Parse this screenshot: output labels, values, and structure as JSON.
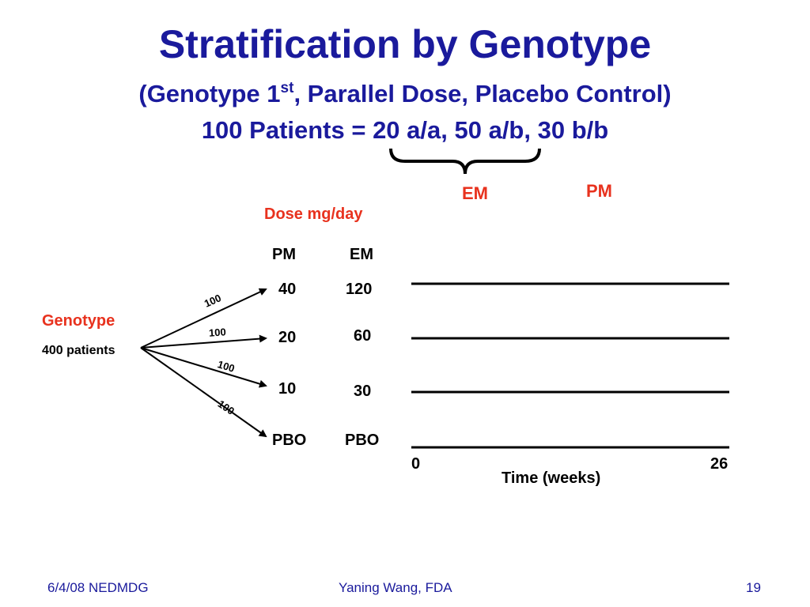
{
  "slide": {
    "title": "Stratification by Genotype",
    "subtitle_part1": "(Genotype 1",
    "subtitle_sup": "st",
    "subtitle_part2": ", Parallel Dose, Placebo Control)",
    "patients_line": "100 Patients = 20 a/a, 50 a/b, 30 b/b",
    "brace_label": "EM",
    "pm_label": "PM"
  },
  "diagram": {
    "genotype_label": "Genotype",
    "patients_label": "400 patients",
    "dose_header": "Dose mg/day",
    "col_pm": "PM",
    "col_em": "EM",
    "branch_counts": [
      "100",
      "100",
      "100",
      "100"
    ],
    "arms": [
      {
        "pm": "40",
        "em": "120"
      },
      {
        "pm": "20",
        "em": "60"
      },
      {
        "pm": "10",
        "em": "30"
      },
      {
        "pm": "PBO",
        "em": "PBO"
      }
    ],
    "time_start": "0",
    "time_end": "26",
    "time_label": "Time (weeks)"
  },
  "footer": {
    "left": "6/4/08 NEDMDG",
    "center": "Yaning Wang, FDA",
    "right": "19"
  },
  "colors": {
    "title": "#1a1a9c",
    "accent": "#e8321e",
    "text": "#000000"
  }
}
